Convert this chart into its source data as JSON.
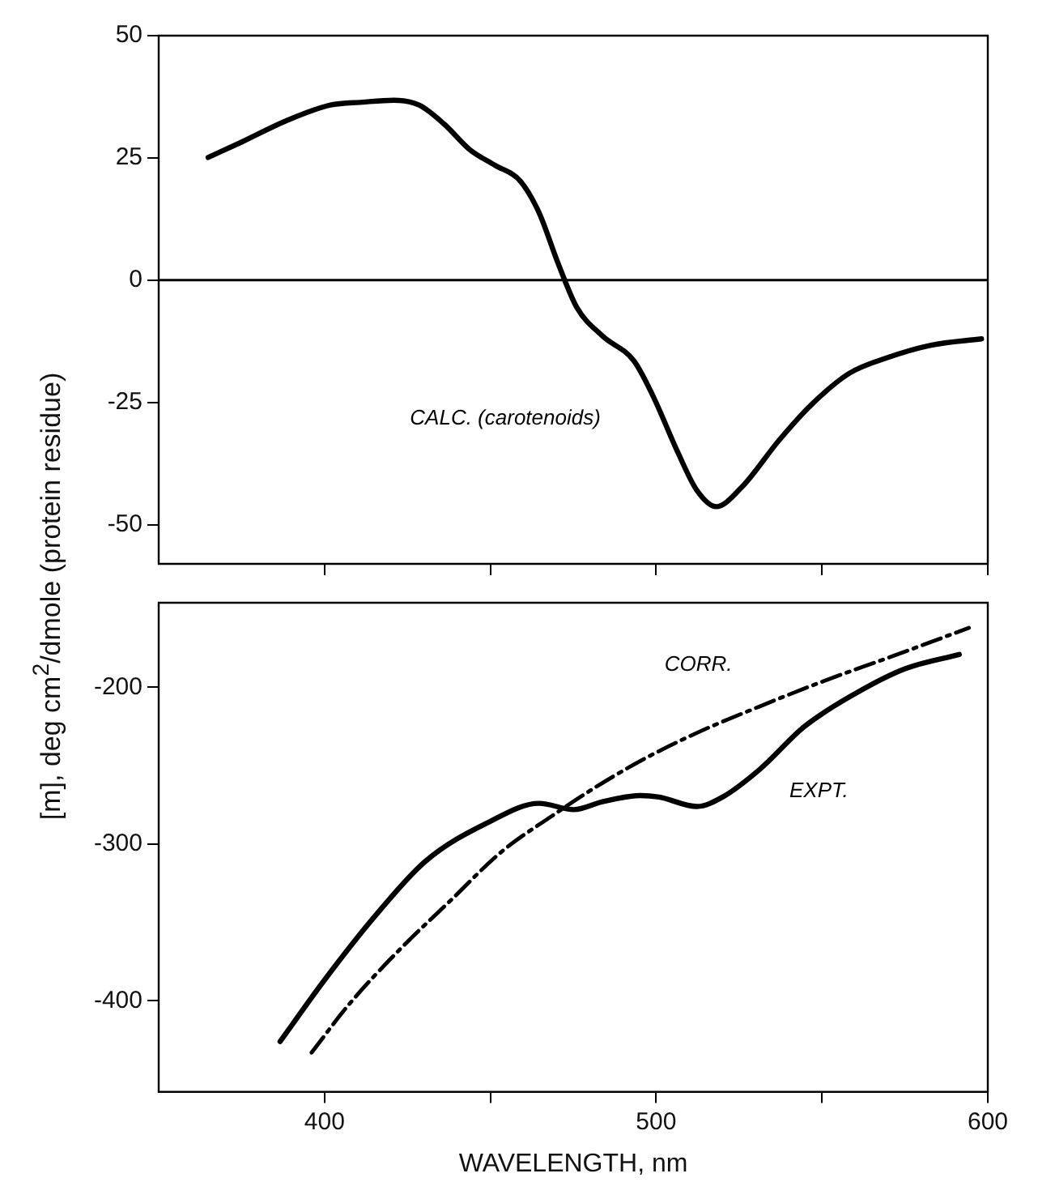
{
  "chart_data": [
    {
      "type": "line",
      "ylabel": "[m], deg cm$^{2}$/dmole (protein residue)",
      "xlim": [
        350,
        600
      ],
      "xticks": [
        400,
        450,
        500,
        550,
        600
      ],
      "ylim": [
        -58,
        50
      ],
      "yticks": [
        -50,
        -25,
        0,
        25,
        50
      ],
      "tick_labels": "y",
      "grid": false,
      "legend": false,
      "marker": "none",
      "ref_lines": [
        {
          "axis": "y",
          "value": 0,
          "color": "#000000"
        }
      ],
      "series": [
        {
          "name": "CALC. (carotenoids)",
          "color": "#000000",
          "line_style": "solid",
          "x": [
            364.9,
            375.2,
            388.5,
            401.8,
            411.4,
            420.9,
            428.5,
            436.1,
            443.8,
            451.4,
            459,
            464.7,
            470.4,
            476.1,
            483.8,
            493.3,
            499,
            506.6,
            512.3,
            518.1,
            525.7,
            537.1,
            546.6,
            558.1,
            569.5,
            582.9,
            598.1
          ],
          "values": [
            25.1,
            28.3,
            32.6,
            35.8,
            36.4,
            36.8,
            35.8,
            31.9,
            26.7,
            23.5,
            20.3,
            13.8,
            3.5,
            -5.6,
            -11.4,
            -16.5,
            -23.6,
            -35.3,
            -43,
            -46.3,
            -42.4,
            -32.7,
            -25.6,
            -19.1,
            -15.9,
            -13.3,
            -12
          ]
        }
      ]
    },
    {
      "type": "line",
      "xlabel": "WAVELENGTH, nm",
      "xlim": [
        350,
        600
      ],
      "xticks": [
        400,
        {
          "value": 450,
          "label": null
        },
        500,
        {
          "value": 550,
          "label": null
        },
        600
      ],
      "ylim": [
        -458,
        -146
      ],
      "yticks": [
        -400,
        -300,
        -200
      ],
      "grid": false,
      "legend": false,
      "marker": "none",
      "series": [
        {
          "name": "EXPT.",
          "color": "#000000",
          "line_style": "solid",
          "x": [
            386.6,
            399.9,
            415.2,
            430.4,
            449.5,
            464.7,
            475.2,
            483.8,
            495.2,
            500.9,
            512.3,
            520,
            531.4,
            544.7,
            560,
            575.2,
            591.4
          ],
          "values": [
            -426,
            -387,
            -346,
            -311,
            -286,
            -274,
            -278,
            -273,
            -269,
            -270,
            -276,
            -270,
            -252,
            -225,
            -204,
            -188,
            -179
          ]
        },
        {
          "name": "CORR.",
          "color": "#000000",
          "line_style": "dashed",
          "x": [
            396.1,
            407.5,
            422.8,
            438,
            453.3,
            468.6,
            480,
            495.2,
            512.3,
            531.4,
            550.5,
            571.4,
            594.3
          ],
          "values": [
            -433,
            -402,
            -367,
            -336,
            -305,
            -282,
            -266,
            -247,
            -229,
            -212,
            -196,
            -180,
            -162
          ]
        }
      ]
    }
  ]
}
